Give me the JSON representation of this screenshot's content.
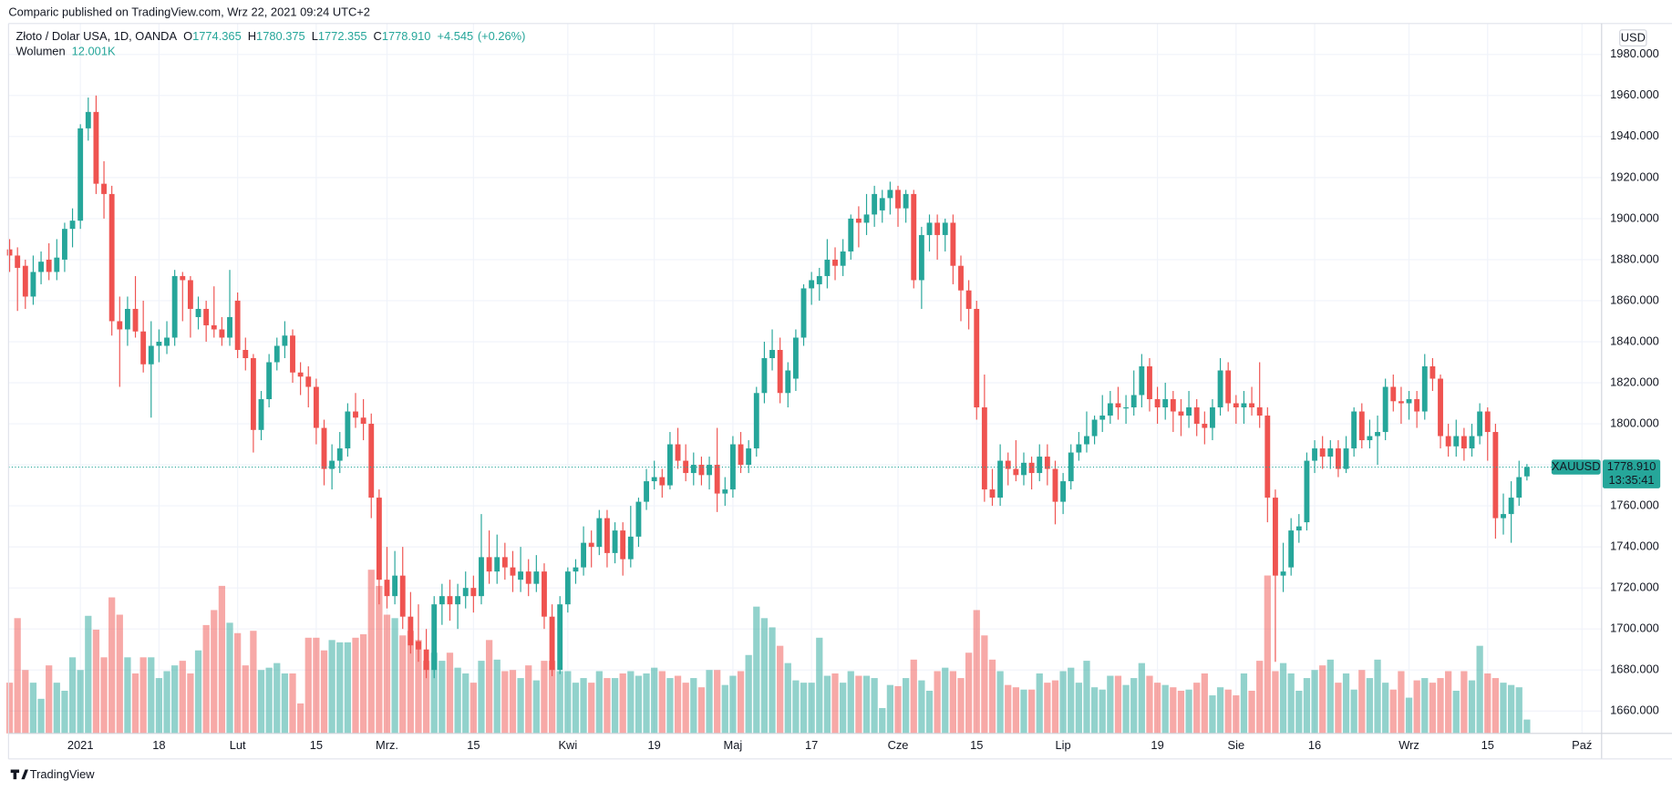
{
  "header": {
    "published": "Comparic published on TradingView.com, Wrz 22, 2021 09:24 UTC+2",
    "brand": "TradingView"
  },
  "chart_data": {
    "type": "candlestick",
    "title": "Złoto / Dolar USA, 1D, OANDA",
    "legend_prefixes": [
      "O",
      "H",
      "L",
      "C"
    ],
    "legend_values": [
      1774.365,
      1780.375,
      1772.355,
      1778.91
    ],
    "legend_value_labels": [
      "1774.365",
      "1780.375",
      "1772.355",
      "1778.910"
    ],
    "change": 4.545,
    "change_label": "+4.545",
    "change_percent": 0.26,
    "change_percent_label": "(+0.26%)",
    "symbol": "XAUUSD",
    "currency": "USD",
    "countdown": "13:35:41",
    "up_color": "#26a69a",
    "down_color": "#ef5350",
    "volume_up_color": "rgba(38,166,154,0.5)",
    "volume_down_color": "rgba(239,83,80,0.5)",
    "grid": true,
    "xlim": [
      -0.14,
      202.5
    ],
    "xticks": [
      {
        "value": 9,
        "label": "2021"
      },
      {
        "value": 19,
        "label": "18"
      },
      {
        "value": 29,
        "label": "Lut"
      },
      {
        "value": 39,
        "label": "15"
      },
      {
        "value": 48,
        "label": "Mrz."
      },
      {
        "value": 59,
        "label": "15"
      },
      {
        "value": 71,
        "label": "Kwi"
      },
      {
        "value": 82,
        "label": "19"
      },
      {
        "value": 92,
        "label": "Maj"
      },
      {
        "value": 102,
        "label": "17"
      },
      {
        "value": 113,
        "label": "Cze"
      },
      {
        "value": 123,
        "label": "15"
      },
      {
        "value": 134,
        "label": "Lip"
      },
      {
        "value": 146,
        "label": "19"
      },
      {
        "value": 156,
        "label": "Sie"
      },
      {
        "value": 166,
        "label": "16"
      },
      {
        "value": 178,
        "label": "Wrz"
      },
      {
        "value": 188,
        "label": "15"
      },
      {
        "value": 200,
        "label": "Paź"
      }
    ],
    "ylim": [
      1649.1,
      1995.1
    ],
    "yticks": [
      {
        "value": 1660,
        "label": "1660.000"
      },
      {
        "value": 1680,
        "label": "1680.000"
      },
      {
        "value": 1700,
        "label": "1700.000"
      },
      {
        "value": 1720,
        "label": "1720.000"
      },
      {
        "value": 1740,
        "label": "1740.000"
      },
      {
        "value": 1760,
        "label": "1760.000"
      },
      {
        "value": 1780,
        "label": "1780.000"
      },
      {
        "value": 1800,
        "label": "1800.000"
      },
      {
        "value": 1820,
        "label": "1820.000"
      },
      {
        "value": 1840,
        "label": "1840.000"
      },
      {
        "value": 1860,
        "label": "1860.000"
      },
      {
        "value": 1880,
        "label": "1880.000"
      },
      {
        "value": 1900,
        "label": "1900.000"
      },
      {
        "value": 1920,
        "label": "1920.000"
      },
      {
        "value": 1940,
        "label": "1940.000"
      },
      {
        "value": 1960,
        "label": "1960.000"
      },
      {
        "value": 1980,
        "label": "1980.000"
      }
    ],
    "ohlc": [
      [
        1885,
        1890,
        1874,
        1882
      ],
      [
        1882,
        1886,
        1855,
        1876
      ],
      [
        1877,
        1880,
        1856,
        1862
      ],
      [
        1862,
        1882,
        1858,
        1874
      ],
      [
        1874,
        1884,
        1868,
        1879
      ],
      [
        1880,
        1888,
        1870,
        1874
      ],
      [
        1874,
        1890,
        1870,
        1881
      ],
      [
        1880,
        1898,
        1874,
        1895
      ],
      [
        1895,
        1905,
        1886,
        1899
      ],
      [
        1899,
        1946,
        1895,
        1944
      ],
      [
        1944,
        1959,
        1938,
        1952
      ],
      [
        1952,
        1960,
        1912,
        1917
      ],
      [
        1917,
        1928,
        1900,
        1912
      ],
      [
        1912,
        1916,
        1843,
        1850
      ],
      [
        1850,
        1862,
        1818,
        1846
      ],
      [
        1846,
        1862,
        1838,
        1856
      ],
      [
        1856,
        1872,
        1842,
        1845
      ],
      [
        1845,
        1860,
        1825,
        1829
      ],
      [
        1829,
        1850,
        1803,
        1838
      ],
      [
        1838,
        1846,
        1830,
        1840
      ],
      [
        1838,
        1850,
        1834,
        1842
      ],
      [
        1842,
        1875,
        1838,
        1872
      ],
      [
        1872,
        1874,
        1850,
        1870
      ],
      [
        1870,
        1872,
        1842,
        1856
      ],
      [
        1852,
        1862,
        1846,
        1856
      ],
      [
        1856,
        1860,
        1840,
        1848
      ],
      [
        1848,
        1867,
        1842,
        1846
      ],
      [
        1846,
        1852,
        1838,
        1842
      ],
      [
        1842,
        1875,
        1838,
        1852
      ],
      [
        1860,
        1864,
        1832,
        1836
      ],
      [
        1836,
        1842,
        1826,
        1832
      ],
      [
        1832,
        1834,
        1786,
        1797
      ],
      [
        1797,
        1816,
        1792,
        1812
      ],
      [
        1812,
        1834,
        1808,
        1830
      ],
      [
        1830,
        1842,
        1826,
        1838
      ],
      [
        1838,
        1850,
        1832,
        1843
      ],
      [
        1843,
        1846,
        1820,
        1825
      ],
      [
        1825,
        1830,
        1814,
        1823
      ],
      [
        1823,
        1828,
        1808,
        1818
      ],
      [
        1818,
        1822,
        1790,
        1798
      ],
      [
        1798,
        1802,
        1770,
        1778
      ],
      [
        1778,
        1790,
        1768,
        1782
      ],
      [
        1782,
        1796,
        1776,
        1788
      ],
      [
        1788,
        1810,
        1784,
        1806
      ],
      [
        1806,
        1815,
        1798,
        1803
      ],
      [
        1803,
        1812,
        1792,
        1800
      ],
      [
        1800,
        1805,
        1754,
        1764
      ],
      [
        1764,
        1768,
        1712,
        1724
      ],
      [
        1724,
        1740,
        1710,
        1716
      ],
      [
        1716,
        1738,
        1712,
        1726
      ],
      [
        1726,
        1740,
        1700,
        1706
      ],
      [
        1706,
        1718,
        1688,
        1692
      ],
      [
        1694,
        1712,
        1684,
        1690
      ],
      [
        1690,
        1700,
        1676,
        1680
      ],
      [
        1680,
        1716,
        1676,
        1712
      ],
      [
        1712,
        1722,
        1702,
        1716
      ],
      [
        1716,
        1724,
        1704,
        1712
      ],
      [
        1712,
        1722,
        1700,
        1716
      ],
      [
        1716,
        1728,
        1710,
        1720
      ],
      [
        1720,
        1726,
        1708,
        1716
      ],
      [
        1716,
        1756,
        1712,
        1735
      ],
      [
        1735,
        1748,
        1722,
        1728
      ],
      [
        1728,
        1746,
        1722,
        1735
      ],
      [
        1735,
        1742,
        1724,
        1730
      ],
      [
        1730,
        1738,
        1718,
        1726
      ],
      [
        1724,
        1740,
        1718,
        1728
      ],
      [
        1728,
        1734,
        1716,
        1722
      ],
      [
        1722,
        1736,
        1718,
        1728
      ],
      [
        1728,
        1732,
        1700,
        1706
      ],
      [
        1706,
        1712,
        1677,
        1680
      ],
      [
        1680,
        1716,
        1678,
        1712
      ],
      [
        1712,
        1730,
        1708,
        1728
      ],
      [
        1728,
        1734,
        1722,
        1730
      ],
      [
        1730,
        1750,
        1726,
        1742
      ],
      [
        1742,
        1748,
        1730,
        1740
      ],
      [
        1740,
        1758,
        1736,
        1754
      ],
      [
        1754,
        1758,
        1730,
        1737
      ],
      [
        1737,
        1752,
        1732,
        1748
      ],
      [
        1748,
        1752,
        1726,
        1734
      ],
      [
        1734,
        1760,
        1730,
        1745
      ],
      [
        1745,
        1764,
        1740,
        1762
      ],
      [
        1762,
        1778,
        1758,
        1772
      ],
      [
        1772,
        1782,
        1768,
        1774
      ],
      [
        1774,
        1778,
        1764,
        1770
      ],
      [
        1770,
        1796,
        1768,
        1790
      ],
      [
        1790,
        1798,
        1778,
        1782
      ],
      [
        1782,
        1790,
        1772,
        1776
      ],
      [
        1776,
        1786,
        1770,
        1780
      ],
      [
        1780,
        1784,
        1770,
        1775
      ],
      [
        1775,
        1784,
        1768,
        1780
      ],
      [
        1780,
        1798,
        1757,
        1766
      ],
      [
        1766,
        1774,
        1760,
        1768
      ],
      [
        1768,
        1794,
        1764,
        1790
      ],
      [
        1790,
        1796,
        1776,
        1780
      ],
      [
        1780,
        1792,
        1776,
        1788
      ],
      [
        1788,
        1818,
        1784,
        1815
      ],
      [
        1815,
        1840,
        1810,
        1832
      ],
      [
        1832,
        1846,
        1826,
        1836
      ],
      [
        1836,
        1842,
        1810,
        1815
      ],
      [
        1815,
        1830,
        1808,
        1826
      ],
      [
        1822,
        1846,
        1816,
        1842
      ],
      [
        1842,
        1868,
        1838,
        1866
      ],
      [
        1866,
        1874,
        1858,
        1870
      ],
      [
        1868,
        1876,
        1860,
        1872
      ],
      [
        1872,
        1890,
        1866,
        1880
      ],
      [
        1880,
        1886,
        1870,
        1877
      ],
      [
        1877,
        1890,
        1872,
        1884
      ],
      [
        1884,
        1902,
        1880,
        1900
      ],
      [
        1900,
        1906,
        1886,
        1898
      ],
      [
        1898,
        1912,
        1892,
        1902
      ],
      [
        1902,
        1916,
        1896,
        1912
      ],
      [
        1904,
        1914,
        1898,
        1910
      ],
      [
        1910,
        1918,
        1902,
        1914
      ],
      [
        1914,
        1916,
        1896,
        1905
      ],
      [
        1905,
        1914,
        1898,
        1912
      ],
      [
        1912,
        1914,
        1866,
        1870
      ],
      [
        1870,
        1896,
        1856,
        1892
      ],
      [
        1892,
        1902,
        1884,
        1898
      ],
      [
        1898,
        1902,
        1880,
        1892
      ],
      [
        1892,
        1900,
        1884,
        1898
      ],
      [
        1898,
        1902,
        1868,
        1877
      ],
      [
        1877,
        1882,
        1850,
        1865
      ],
      [
        1865,
        1870,
        1846,
        1856
      ],
      [
        1856,
        1860,
        1802,
        1808
      ],
      [
        1808,
        1824,
        1762,
        1768
      ],
      [
        1768,
        1778,
        1760,
        1764
      ],
      [
        1764,
        1790,
        1760,
        1782
      ],
      [
        1782,
        1786,
        1770,
        1778
      ],
      [
        1778,
        1792,
        1772,
        1775
      ],
      [
        1775,
        1786,
        1770,
        1781
      ],
      [
        1781,
        1784,
        1768,
        1776
      ],
      [
        1776,
        1790,
        1772,
        1784
      ],
      [
        1784,
        1790,
        1770,
        1778
      ],
      [
        1778,
        1782,
        1751,
        1762
      ],
      [
        1762,
        1776,
        1756,
        1772
      ],
      [
        1772,
        1790,
        1768,
        1786
      ],
      [
        1786,
        1796,
        1782,
        1790
      ],
      [
        1790,
        1806,
        1786,
        1794
      ],
      [
        1794,
        1804,
        1790,
        1802
      ],
      [
        1802,
        1814,
        1796,
        1804
      ],
      [
        1804,
        1816,
        1800,
        1810
      ],
      [
        1810,
        1818,
        1802,
        1808
      ],
      [
        1808,
        1814,
        1800,
        1808
      ],
      [
        1808,
        1826,
        1804,
        1814
      ],
      [
        1814,
        1834,
        1808,
        1828
      ],
      [
        1828,
        1832,
        1806,
        1812
      ],
      [
        1812,
        1818,
        1800,
        1808
      ],
      [
        1808,
        1820,
        1802,
        1812
      ],
      [
        1812,
        1816,
        1796,
        1806
      ],
      [
        1806,
        1812,
        1794,
        1804
      ],
      [
        1804,
        1816,
        1798,
        1808
      ],
      [
        1808,
        1812,
        1794,
        1800
      ],
      [
        1800,
        1806,
        1790,
        1798
      ],
      [
        1798,
        1812,
        1792,
        1808
      ],
      [
        1808,
        1832,
        1804,
        1826
      ],
      [
        1826,
        1830,
        1806,
        1810
      ],
      [
        1810,
        1814,
        1800,
        1808
      ],
      [
        1808,
        1816,
        1800,
        1810
      ],
      [
        1810,
        1818,
        1804,
        1808
      ],
      [
        1808,
        1830,
        1798,
        1804
      ],
      [
        1804,
        1808,
        1752,
        1764
      ],
      [
        1764,
        1768,
        1684,
        1726
      ],
      [
        1726,
        1742,
        1718,
        1728
      ],
      [
        1730,
        1754,
        1726,
        1748
      ],
      [
        1748,
        1756,
        1742,
        1750
      ],
      [
        1752,
        1786,
        1748,
        1782
      ],
      [
        1782,
        1792,
        1776,
        1788
      ],
      [
        1788,
        1794,
        1778,
        1784
      ],
      [
        1784,
        1792,
        1778,
        1788
      ],
      [
        1788,
        1792,
        1774,
        1778
      ],
      [
        1778,
        1794,
        1776,
        1788
      ],
      [
        1788,
        1808,
        1784,
        1806
      ],
      [
        1806,
        1810,
        1788,
        1792
      ],
      [
        1792,
        1802,
        1788,
        1794
      ],
      [
        1794,
        1804,
        1780,
        1796
      ],
      [
        1796,
        1822,
        1792,
        1818
      ],
      [
        1818,
        1824,
        1806,
        1811
      ],
      [
        1811,
        1818,
        1800,
        1810
      ],
      [
        1810,
        1816,
        1802,
        1812
      ],
      [
        1812,
        1816,
        1798,
        1806
      ],
      [
        1806,
        1834,
        1802,
        1828
      ],
      [
        1828,
        1832,
        1816,
        1822
      ],
      [
        1822,
        1824,
        1788,
        1794
      ],
      [
        1794,
        1800,
        1784,
        1789
      ],
      [
        1789,
        1802,
        1784,
        1794
      ],
      [
        1794,
        1798,
        1782,
        1788
      ],
      [
        1788,
        1800,
        1784,
        1794
      ],
      [
        1794,
        1810,
        1790,
        1806
      ],
      [
        1806,
        1808,
        1782,
        1796
      ],
      [
        1796,
        1800,
        1744,
        1754
      ],
      [
        1754,
        1766,
        1746,
        1756
      ],
      [
        1756,
        1772,
        1742,
        1764
      ],
      [
        1764,
        1782,
        1760,
        1774
      ],
      [
        1774.365,
        1780.375,
        1772.355,
        1778.91
      ]
    ],
    "volume": {
      "name": "Wolumen",
      "last_label": "12.001K",
      "ylim": [
        0,
        160
      ],
      "values": [
        44,
        100,
        55,
        44,
        30,
        59,
        44,
        37,
        66,
        55,
        102,
        90,
        66,
        118,
        103,
        66,
        52,
        66,
        66,
        48,
        54,
        59,
        63,
        52,
        72,
        94,
        107,
        128,
        96,
        87,
        59,
        89,
        55,
        57,
        61,
        52,
        52,
        26,
        83,
        83,
        72,
        81,
        79,
        79,
        83,
        86,
        142,
        128,
        103,
        100,
        85,
        89,
        81,
        63,
        70,
        63,
        70,
        57,
        52,
        44,
        63,
        81,
        64,
        54,
        55,
        48,
        59,
        46,
        63,
        63,
        54,
        54,
        44,
        48,
        44,
        54,
        48,
        48,
        52,
        54,
        50,
        52,
        57,
        54,
        48,
        50,
        44,
        48,
        40,
        55,
        55,
        42,
        50,
        54,
        68,
        110,
        100,
        92,
        76,
        61,
        46,
        44,
        44,
        83,
        50,
        52,
        44,
        54,
        50,
        50,
        48,
        22,
        42,
        41,
        48,
        64,
        46,
        37,
        54,
        57,
        54,
        48,
        70,
        107,
        85,
        64,
        54,
        42,
        40,
        38,
        38,
        52,
        44,
        46,
        54,
        57,
        44,
        63,
        40,
        38,
        50,
        50,
        42,
        48,
        61,
        50,
        44,
        42,
        40,
        37,
        38,
        44,
        52,
        33,
        40,
        38,
        33,
        52,
        37,
        63,
        137,
        54,
        61,
        52,
        37,
        48,
        55,
        59,
        64,
        44,
        52,
        38,
        55,
        48,
        64,
        44,
        38,
        54,
        31,
        46,
        48,
        44,
        48,
        54,
        37,
        54,
        46,
        76,
        52,
        48,
        44,
        42,
        40,
        12.001
      ]
    }
  }
}
